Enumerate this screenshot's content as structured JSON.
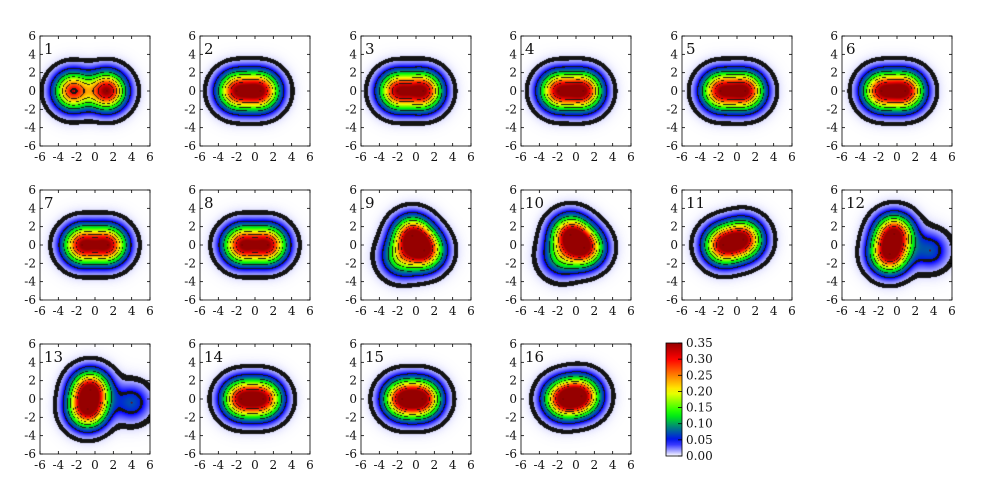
{
  "chart_data": {
    "type": "heatmap",
    "title": "",
    "xlabel": "",
    "ylabel": "",
    "xlim": [
      -6,
      6
    ],
    "ylim": [
      -6,
      6
    ],
    "x_ticks": [
      -6,
      -4,
      -2,
      0,
      2,
      4,
      6
    ],
    "y_ticks": [
      -6,
      -4,
      -2,
      0,
      2,
      4,
      6
    ],
    "grid": false,
    "colorbar": {
      "min": 0.0,
      "max": 0.35,
      "tick_labels": [
        "0.00",
        "0.05",
        "0.10",
        "0.15",
        "0.20",
        "0.25",
        "0.30",
        "0.35"
      ],
      "colors": [
        "#ffffff",
        "#0000ff",
        "#00ff00",
        "#ffff00",
        "#ff0000",
        "#990000"
      ]
    },
    "panels": [
      {
        "label": "1",
        "peaks": [
          [
            -2.4,
            0.0,
            0.3
          ],
          [
            1.3,
            0.0,
            0.35
          ]
        ]
      },
      {
        "label": "2",
        "peaks": [
          [
            -2.0,
            0.0,
            0.32
          ],
          [
            0.6,
            0.0,
            0.34
          ]
        ]
      },
      {
        "label": "3",
        "peaks": [
          [
            -2.0,
            0.0,
            0.32
          ],
          [
            0.8,
            0.0,
            0.34
          ]
        ]
      },
      {
        "label": "4",
        "peaks": [
          [
            -1.9,
            0.0,
            0.32
          ],
          [
            0.8,
            0.0,
            0.34
          ]
        ]
      },
      {
        "label": "5",
        "peaks": [
          [
            -1.8,
            0.0,
            0.32
          ],
          [
            0.9,
            0.0,
            0.34
          ]
        ]
      },
      {
        "label": "6",
        "peaks": [
          [
            -1.7,
            0.0,
            0.32
          ],
          [
            0.9,
            0.0,
            0.34
          ]
        ]
      },
      {
        "label": "7",
        "peaks": [
          [
            -1.4,
            0.0,
            0.33
          ],
          [
            1.4,
            0.0,
            0.33
          ]
        ]
      },
      {
        "label": "8",
        "peaks": [
          [
            -1.4,
            0.0,
            0.33
          ],
          [
            1.4,
            0.0,
            0.33
          ]
        ]
      },
      {
        "label": "9",
        "peaks": [
          [
            -0.4,
            1.0,
            0.33
          ],
          [
            0.9,
            -0.6,
            0.33
          ],
          [
            -1.6,
            -1.3,
            0.16
          ]
        ]
      },
      {
        "label": "10",
        "peaks": [
          [
            -0.6,
            1.1,
            0.33
          ],
          [
            0.9,
            -0.3,
            0.33
          ],
          [
            -1.6,
            -1.3,
            0.12
          ]
        ]
      },
      {
        "label": "11",
        "peaks": [
          [
            -1.5,
            0.0,
            0.33
          ],
          [
            0.7,
            0.6,
            0.33
          ]
        ]
      },
      {
        "label": "12",
        "peaks": [
          [
            -0.3,
            1.2,
            0.34
          ],
          [
            -0.8,
            -1.0,
            0.34
          ],
          [
            3.6,
            -0.6,
            0.07
          ]
        ]
      },
      {
        "label": "13",
        "peaks": [
          [
            -0.5,
            1.0,
            0.34
          ],
          [
            -0.8,
            -1.1,
            0.34
          ],
          [
            4.0,
            -0.4,
            0.07
          ]
        ]
      },
      {
        "label": "14",
        "peaks": [
          [
            -1.5,
            0.0,
            0.32
          ],
          [
            0.9,
            0.0,
            0.32
          ]
        ]
      },
      {
        "label": "15",
        "peaks": [
          [
            -1.5,
            0.0,
            0.33
          ],
          [
            0.7,
            0.0,
            0.33
          ]
        ]
      },
      {
        "label": "16",
        "peaks": [
          [
            -1.4,
            0.0,
            0.33
          ],
          [
            0.6,
            0.3,
            0.33
          ]
        ]
      }
    ]
  }
}
